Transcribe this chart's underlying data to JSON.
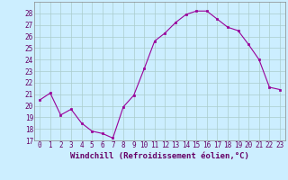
{
  "x": [
    0,
    1,
    2,
    3,
    4,
    5,
    6,
    7,
    8,
    9,
    10,
    11,
    12,
    13,
    14,
    15,
    16,
    17,
    18,
    19,
    20,
    21,
    22,
    23
  ],
  "y": [
    20.5,
    21.1,
    19.2,
    19.7,
    18.5,
    17.8,
    17.6,
    17.2,
    19.9,
    20.9,
    23.2,
    25.6,
    26.3,
    27.2,
    27.9,
    28.2,
    28.2,
    27.5,
    26.8,
    26.5,
    25.3,
    24.0,
    21.6,
    21.4
  ],
  "line_color": "#990099",
  "marker_color": "#990099",
  "bg_color": "#cceeff",
  "grid_color": "#aacccc",
  "xlabel": "Windchill (Refroidissement éolien,°C)",
  "xlim": [
    -0.5,
    23.5
  ],
  "ylim": [
    17,
    29
  ],
  "yticks": [
    17,
    18,
    19,
    20,
    21,
    22,
    23,
    24,
    25,
    26,
    27,
    28
  ],
  "xticks": [
    0,
    1,
    2,
    3,
    4,
    5,
    6,
    7,
    8,
    9,
    10,
    11,
    12,
    13,
    14,
    15,
    16,
    17,
    18,
    19,
    20,
    21,
    22,
    23
  ],
  "tick_fontsize": 5.5,
  "xlabel_fontsize": 6.5,
  "xlabel_color": "#660066",
  "tick_color": "#660066",
  "spine_color": "#888888",
  "line_width": 0.8,
  "marker_size": 2.0
}
